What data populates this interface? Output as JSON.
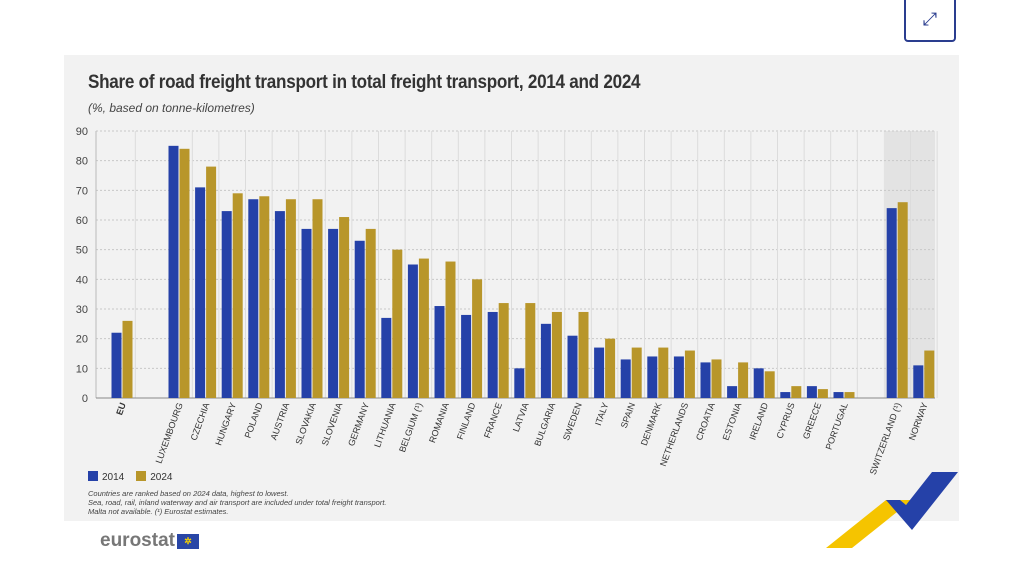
{
  "header": {
    "expand_icon": "expand-icon"
  },
  "chart_data": {
    "type": "bar",
    "title": "Share of road freight transport in total freight transport, 2014 and 2024",
    "subtitle": "(%, based on tonne-kilometres)",
    "ylim": [
      0,
      90
    ],
    "yticks": [
      0,
      10,
      20,
      30,
      40,
      50,
      60,
      70,
      80,
      90
    ],
    "grid": true,
    "legend_position": "bottom-left",
    "categories": [
      "EU",
      "LUXEMBOURG",
      "CZECHIA",
      "HUNGARY",
      "POLAND",
      "AUSTRIA",
      "SLOVAKIA",
      "SLOVENIA",
      "GERMANY",
      "LITHUANIA",
      "BELGIUM (¹)",
      "ROMANIA",
      "FINLAND",
      "FRANCE",
      "LATVIA",
      "BULGARIA",
      "SWEDEN",
      "ITALY",
      "SPAIN",
      "DENMARK",
      "NETHERLANDS",
      "CROATIA",
      "ESTONIA",
      "IRELAND",
      "CYPRUS",
      "GREECE",
      "PORTUGAL",
      "SWITZERLAND (¹)",
      "NORWAY"
    ],
    "series": [
      {
        "name": "2014",
        "color": "#2541a8",
        "values": [
          22,
          85,
          71,
          63,
          67,
          63,
          57,
          57,
          53,
          27,
          45,
          31,
          28,
          29,
          10,
          25,
          21,
          17,
          13,
          14,
          14,
          12,
          4,
          10,
          2,
          4,
          2,
          64,
          11
        ]
      },
      {
        "name": "2024",
        "color": "#b8962a",
        "values": [
          26,
          84,
          78,
          69,
          68,
          67,
          67,
          61,
          57,
          50,
          47,
          46,
          40,
          32,
          32,
          29,
          29,
          20,
          17,
          17,
          16,
          13,
          12,
          9,
          4,
          3,
          2,
          66,
          16
        ]
      }
    ]
  },
  "notes": [
    "Countries are ranked based on 2024 data, highest to lowest.",
    "Sea, road, rail, inland waterway and air transport are included under total freight transport.",
    "Malta not available. (¹) Eurostat estimates."
  ],
  "logo": {
    "text": "eurostat"
  }
}
